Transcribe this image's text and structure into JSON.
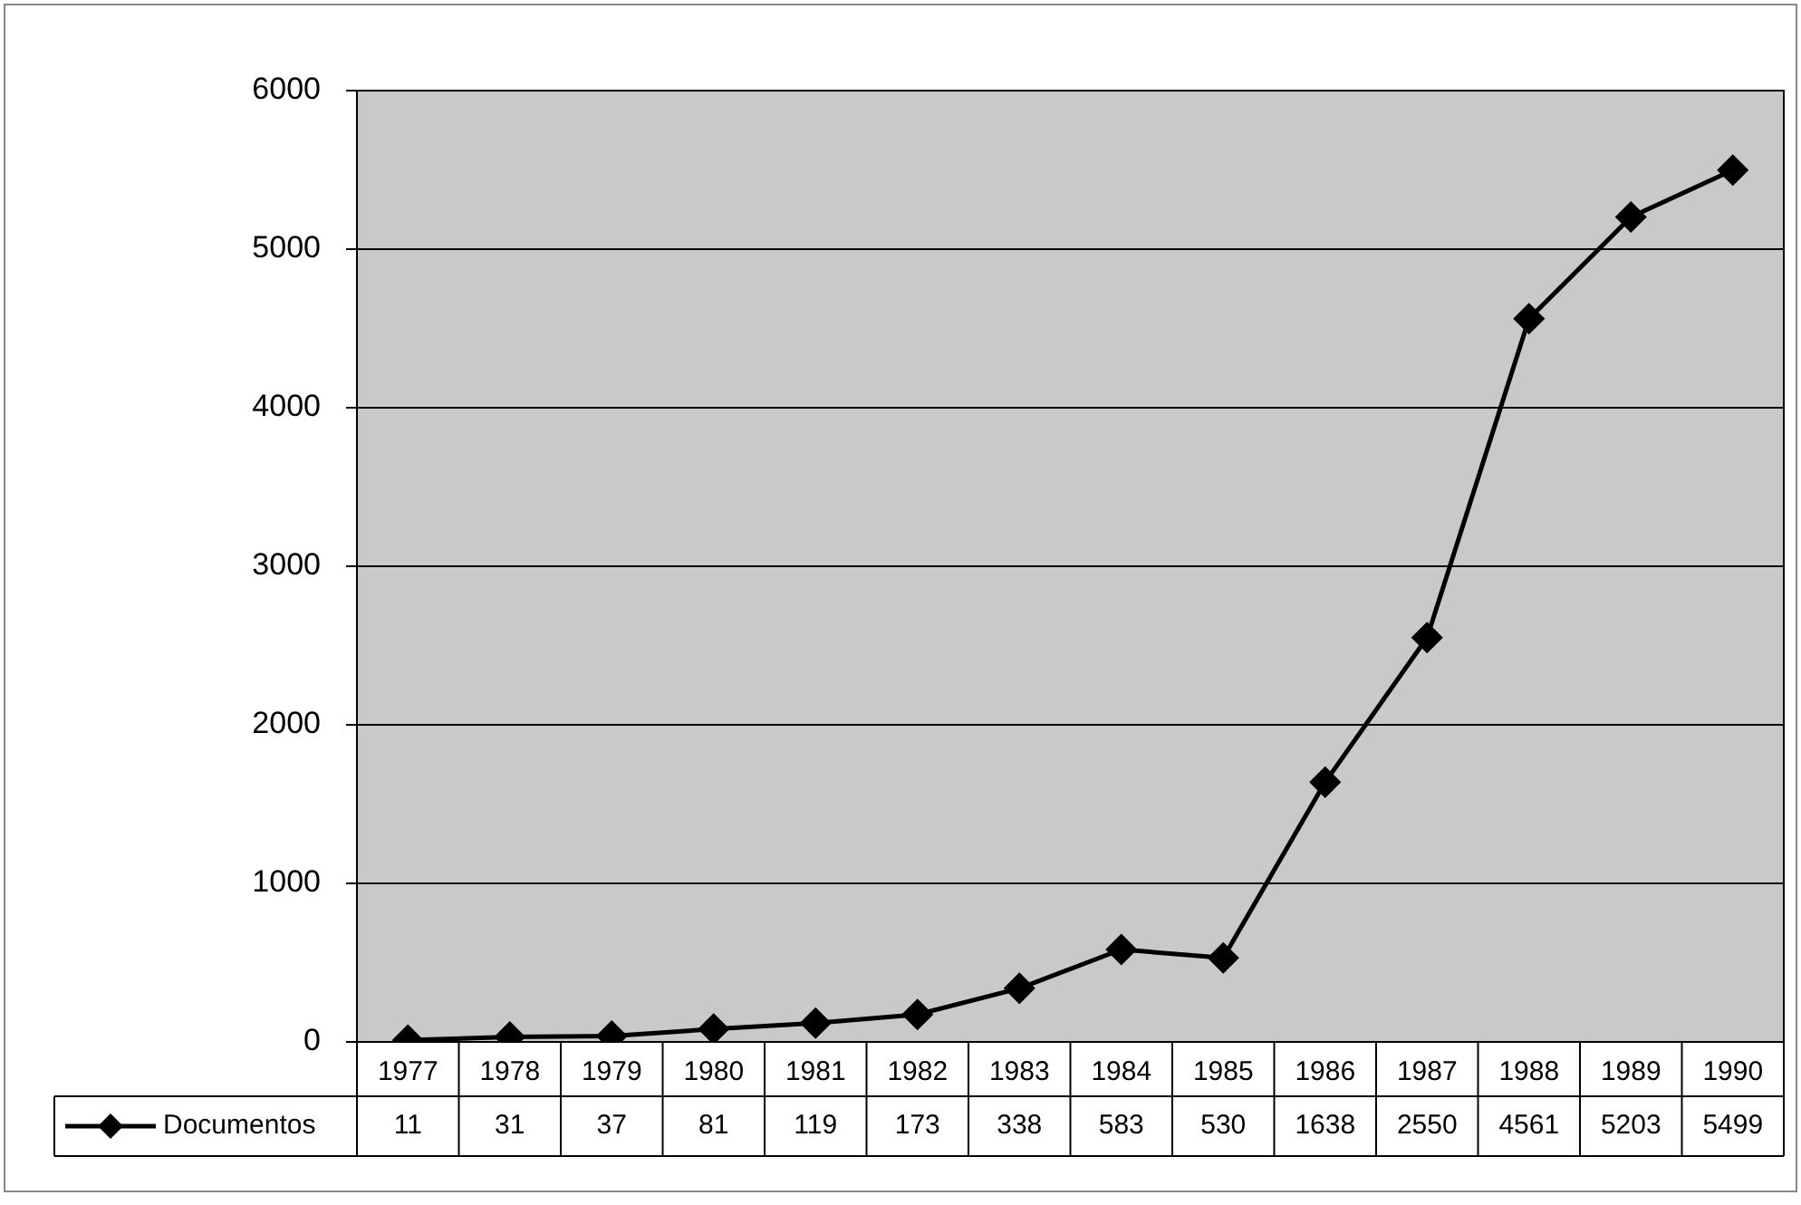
{
  "chart_data": {
    "type": "line",
    "categories": [
      "1977",
      "1978",
      "1979",
      "1980",
      "1981",
      "1982",
      "1983",
      "1984",
      "1985",
      "1986",
      "1987",
      "1988",
      "1989",
      "1990"
    ],
    "series": [
      {
        "name": "Documentos",
        "color": "#000000",
        "values": [
          11,
          31,
          37,
          81,
          119,
          173,
          338,
          583,
          530,
          1638,
          2550,
          4561,
          5203,
          5499
        ]
      }
    ],
    "ylim": [
      0,
      6000
    ],
    "yticks": [
      0,
      1000,
      2000,
      3000,
      4000,
      5000,
      6000
    ],
    "grid": "y",
    "legend": "bottom",
    "marker": "diamond",
    "line_style": "solid",
    "data_labels": true
  }
}
